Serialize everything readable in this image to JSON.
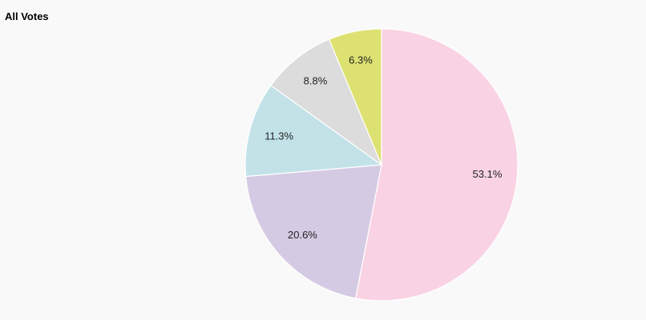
{
  "chart_data": {
    "type": "pie",
    "title": "All Votes",
    "values": [
      53.1,
      20.6,
      11.3,
      8.8,
      6.3
    ],
    "value_labels": [
      "53.1%",
      "20.6%",
      "11.3%",
      "8.8%",
      "6.3%"
    ],
    "colors": [
      "#f9d3e3",
      "#d5cae3",
      "#c2e2e8",
      "#dcdcdc",
      "#dde172"
    ]
  }
}
